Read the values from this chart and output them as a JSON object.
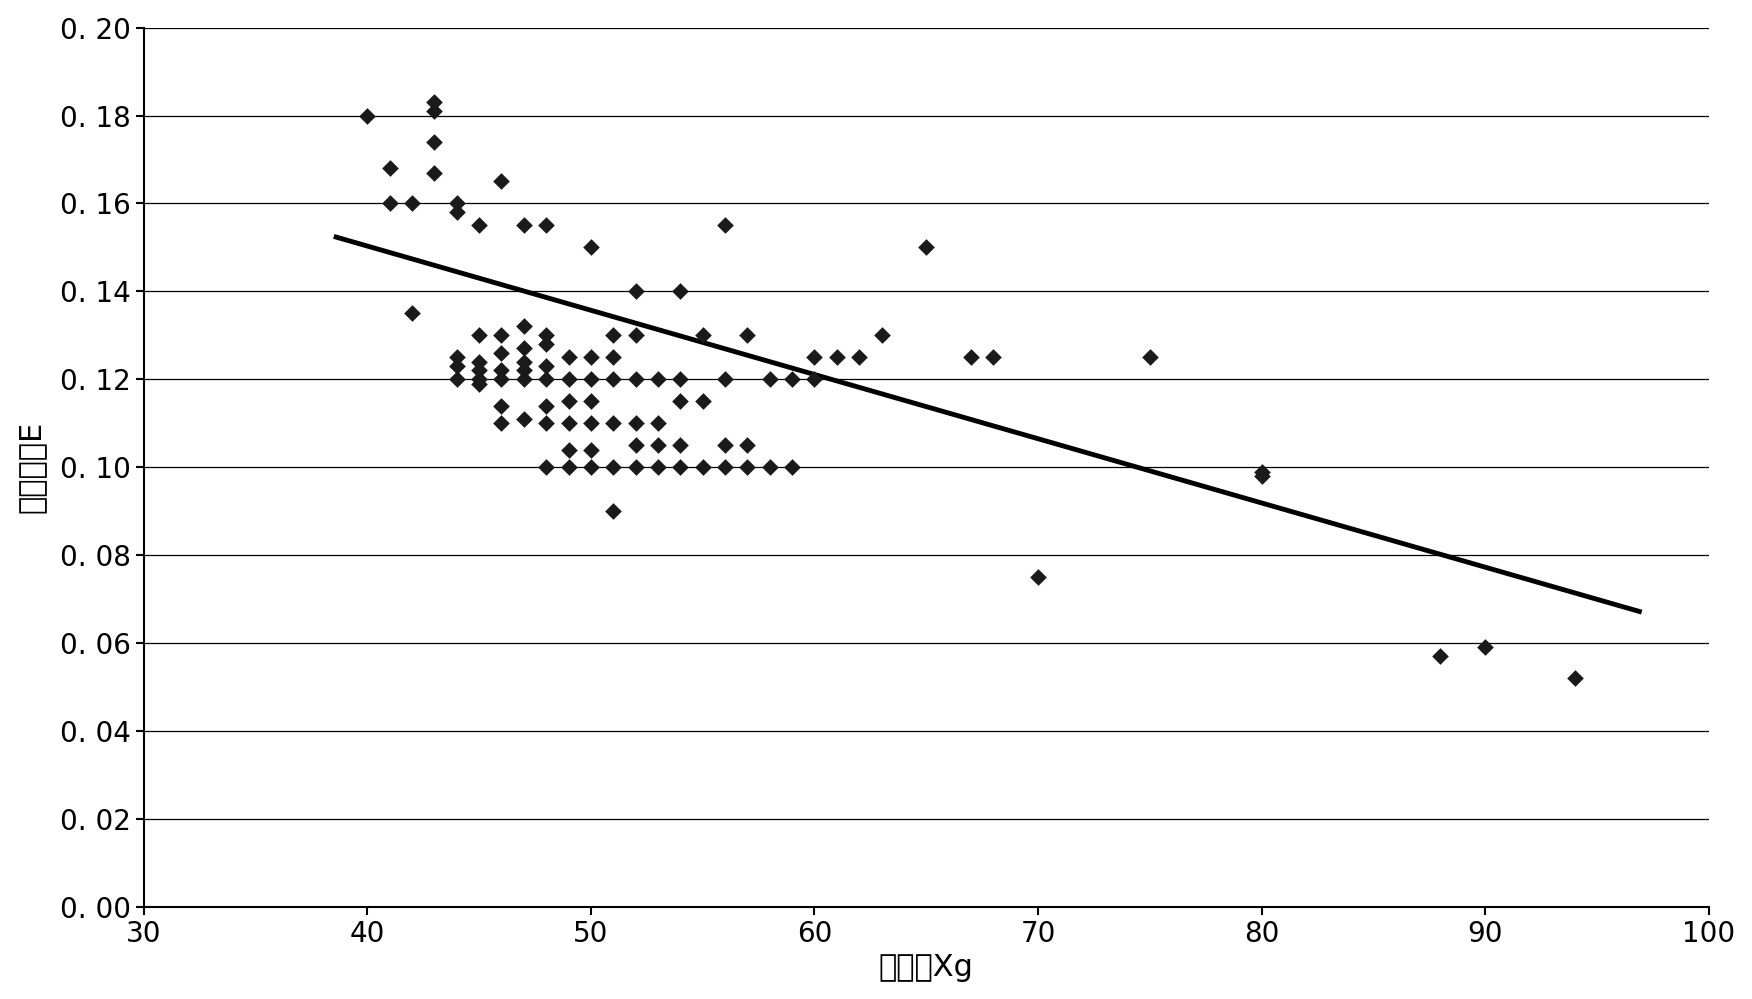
{
  "xlabel": "灰度値Xg",
  "ylabel": "色素含量E",
  "xlim": [
    30,
    100
  ],
  "ylim": [
    0.0,
    0.2
  ],
  "xticks": [
    30,
    40,
    50,
    60,
    70,
    80,
    90,
    100
  ],
  "yticks": [
    0.0,
    0.02,
    0.04,
    0.06,
    0.08,
    0.1,
    0.12,
    0.14,
    0.16,
    0.18,
    0.2
  ],
  "scatter_x": [
    40,
    41,
    41,
    42,
    42,
    43,
    43,
    43,
    43,
    44,
    44,
    44,
    44,
    44,
    45,
    45,
    45,
    45,
    45,
    45,
    46,
    46,
    46,
    46,
    46,
    46,
    46,
    47,
    47,
    47,
    47,
    47,
    47,
    47,
    48,
    48,
    48,
    48,
    48,
    48,
    48,
    48,
    49,
    49,
    49,
    49,
    49,
    49,
    50,
    50,
    50,
    50,
    50,
    50,
    50,
    51,
    51,
    51,
    51,
    51,
    51,
    52,
    52,
    52,
    52,
    52,
    52,
    53,
    53,
    53,
    53,
    54,
    54,
    54,
    54,
    54,
    55,
    55,
    55,
    56,
    56,
    56,
    56,
    57,
    57,
    57,
    58,
    58,
    59,
    59,
    60,
    60,
    61,
    62,
    63,
    65,
    67,
    68,
    70,
    75,
    80,
    80,
    88,
    90,
    94
  ],
  "scatter_y": [
    0.18,
    0.16,
    0.168,
    0.135,
    0.16,
    0.167,
    0.174,
    0.181,
    0.183,
    0.12,
    0.123,
    0.125,
    0.158,
    0.16,
    0.119,
    0.12,
    0.122,
    0.124,
    0.13,
    0.155,
    0.11,
    0.114,
    0.12,
    0.122,
    0.126,
    0.13,
    0.165,
    0.111,
    0.12,
    0.122,
    0.124,
    0.127,
    0.132,
    0.155,
    0.1,
    0.11,
    0.114,
    0.12,
    0.123,
    0.128,
    0.13,
    0.155,
    0.1,
    0.104,
    0.11,
    0.115,
    0.12,
    0.125,
    0.1,
    0.104,
    0.11,
    0.115,
    0.12,
    0.125,
    0.15,
    0.09,
    0.1,
    0.11,
    0.12,
    0.125,
    0.13,
    0.1,
    0.105,
    0.11,
    0.12,
    0.13,
    0.14,
    0.1,
    0.105,
    0.11,
    0.12,
    0.1,
    0.105,
    0.115,
    0.12,
    0.14,
    0.1,
    0.115,
    0.13,
    0.1,
    0.105,
    0.12,
    0.155,
    0.1,
    0.105,
    0.13,
    0.1,
    0.12,
    0.1,
    0.12,
    0.12,
    0.125,
    0.125,
    0.125,
    0.13,
    0.15,
    0.125,
    0.125,
    0.075,
    0.125,
    0.098,
    0.099,
    0.057,
    0.059,
    0.052
  ],
  "line_x": [
    38.5,
    97
  ],
  "line_y": [
    0.1525,
    0.067
  ],
  "marker_color": "#1a1a1a",
  "line_color": "#000000",
  "background_color": "#ffffff",
  "grid_color": "#000000",
  "xlabel_fontsize": 22,
  "ylabel_fontsize": 22,
  "tick_fontsize": 20,
  "line_width": 3.5,
  "marker_size": 72
}
